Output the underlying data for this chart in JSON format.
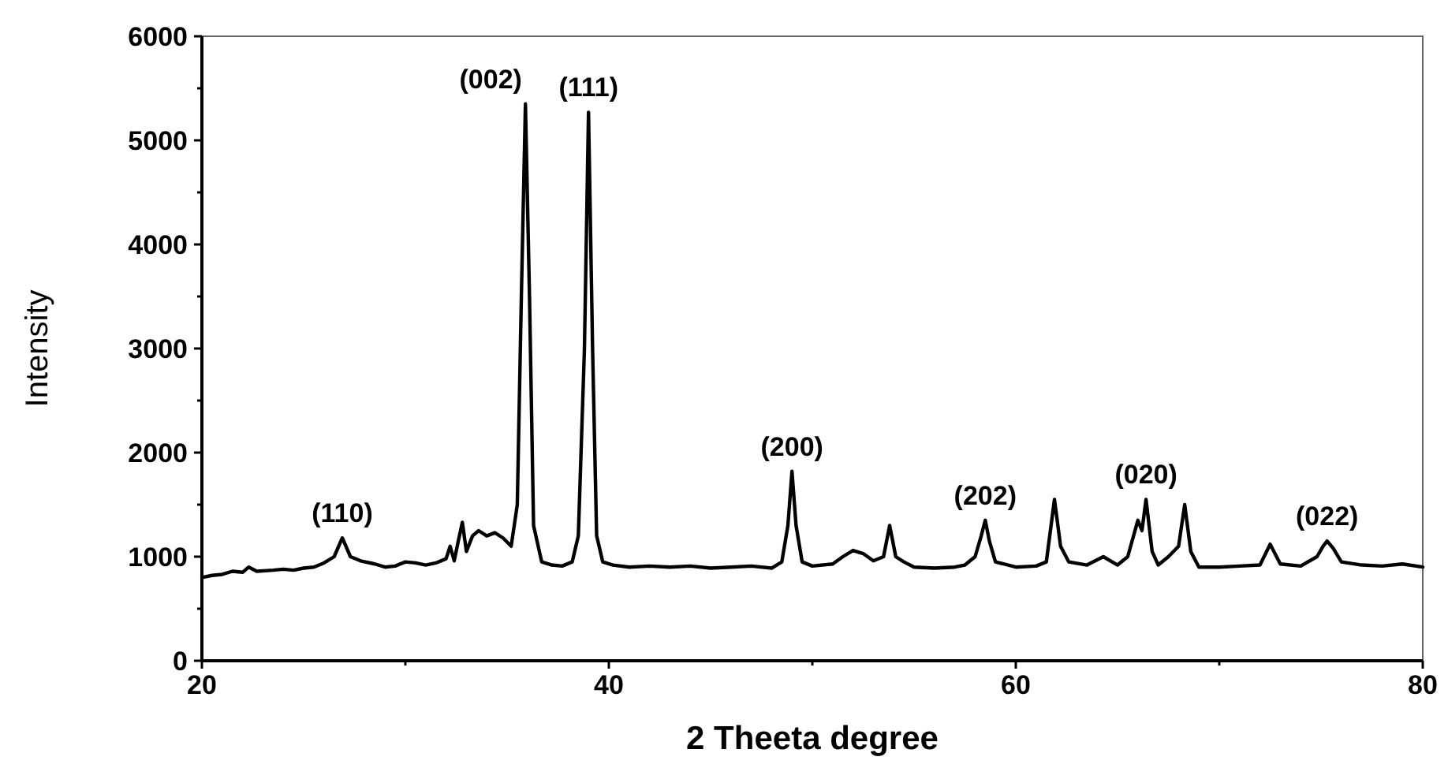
{
  "chart_data": {
    "type": "line",
    "xlabel": "2 Theeta degree",
    "ylabel": "Intensity",
    "xlim": [
      20,
      80
    ],
    "xticks": [
      20,
      {
        "value": 30,
        "label": null
      },
      40,
      {
        "value": 50,
        "label": null
      },
      60,
      {
        "value": 70,
        "label": null
      },
      80
    ],
    "ylim": [
      0,
      6000
    ],
    "yticks": [
      0,
      {
        "value": 500,
        "label": null
      },
      1000,
      {
        "value": 1500,
        "label": null
      },
      2000,
      {
        "value": 2500,
        "label": null
      },
      3000,
      {
        "value": 3500,
        "label": null
      },
      4000,
      {
        "value": 4500,
        "label": null
      },
      5000,
      {
        "value": 5500,
        "label": null
      },
      6000
    ],
    "grid": false,
    "marker": "none",
    "line_style": "solid",
    "series": [
      {
        "color": "#000000",
        "x": [
          20,
          20.5,
          21,
          21.5,
          22,
          22.3,
          22.7,
          23.5,
          24,
          24.5,
          25,
          25.5,
          26,
          26.5,
          26.9,
          27.3,
          27.8,
          28.5,
          29,
          29.5,
          30,
          30.5,
          31,
          31.5,
          32,
          32.2,
          32.4,
          32.6,
          32.8,
          33.0,
          33.3,
          33.6,
          34,
          34.4,
          34.8,
          35.2,
          35.5,
          35.7,
          35.9,
          36.1,
          36.3,
          36.7,
          37.2,
          37.7,
          38.2,
          38.5,
          38.8,
          39.0,
          39.2,
          39.4,
          39.7,
          40.2,
          41,
          42,
          43,
          44,
          45,
          46,
          47,
          48,
          48.5,
          48.8,
          49.0,
          49.2,
          49.5,
          50,
          51,
          51.5,
          52,
          52.5,
          53,
          53.5,
          53.8,
          54.1,
          54.5,
          55,
          56,
          57,
          57.5,
          58,
          58.3,
          58.5,
          58.7,
          59,
          60,
          61,
          61.5,
          61.9,
          62.2,
          62.6,
          63.5,
          64.3,
          65,
          65.5,
          66.0,
          66.2,
          66.4,
          66.7,
          67,
          67.5,
          68,
          68.3,
          68.6,
          69,
          70,
          71,
          72,
          72.5,
          73,
          74,
          74.8,
          75.1,
          75.3,
          75.6,
          76,
          77,
          78,
          79,
          80
        ],
        "values": [
          800,
          820,
          830,
          860,
          850,
          900,
          860,
          870,
          880,
          870,
          890,
          900,
          940,
          1000,
          1180,
          1000,
          960,
          930,
          900,
          910,
          950,
          940,
          920,
          940,
          980,
          1100,
          960,
          1150,
          1330,
          1050,
          1200,
          1250,
          1200,
          1230,
          1180,
          1100,
          1500,
          3500,
          5350,
          3500,
          1300,
          950,
          920,
          910,
          950,
          1200,
          3000,
          5270,
          3000,
          1200,
          950,
          920,
          900,
          910,
          900,
          910,
          890,
          900,
          910,
          890,
          950,
          1300,
          1820,
          1300,
          950,
          910,
          930,
          1000,
          1060,
          1030,
          960,
          1000,
          1300,
          1000,
          950,
          900,
          890,
          900,
          920,
          1000,
          1200,
          1350,
          1150,
          950,
          900,
          910,
          950,
          1550,
          1100,
          950,
          920,
          1000,
          920,
          1000,
          1350,
          1250,
          1550,
          1050,
          920,
          1000,
          1100,
          1500,
          1050,
          900,
          900,
          910,
          920,
          1120,
          930,
          910,
          1000,
          1100,
          1150,
          1080,
          950,
          920,
          910,
          930,
          900
        ]
      }
    ],
    "annotations": [
      {
        "text": "(110)",
        "x": 26.9,
        "y": 1180
      },
      {
        "text": "(002)",
        "x": 35.9,
        "y": 5350
      },
      {
        "text": "(111)",
        "x": 39.0,
        "y": 5270
      },
      {
        "text": "(200)",
        "x": 49.0,
        "y": 1820
      },
      {
        "text": "(202)",
        "x": 58.5,
        "y": 1350
      },
      {
        "text": "(020)",
        "x": 66.4,
        "y": 1550
      },
      {
        "text": "(022)",
        "x": 75.3,
        "y": 1150
      }
    ]
  }
}
